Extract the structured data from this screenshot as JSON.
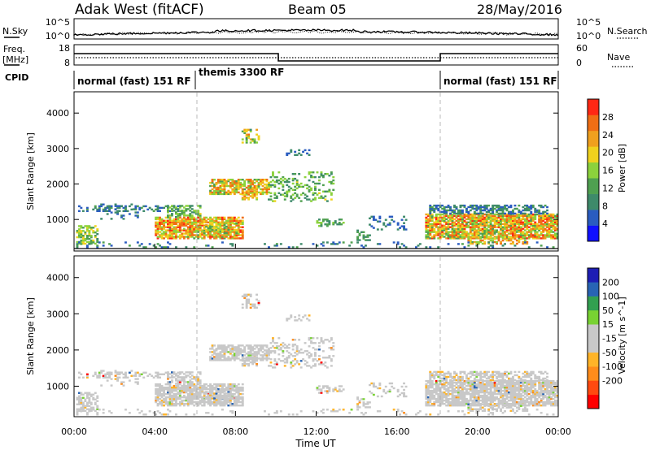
{
  "header": {
    "station": "Adak West (fitACF)",
    "beam": "Beam 05",
    "date": "28/May/2016"
  },
  "noise_panel": {
    "left_label": "N.Sky",
    "right_label": "N.Search",
    "left_ticks": [
      "10^5",
      "10^0"
    ],
    "right_ticks": [
      "10^5",
      "10^0"
    ]
  },
  "freq_panel": {
    "left_label_1": "Freq.",
    "left_label_2": "[MHz]",
    "right_label": "Nave",
    "left_ticks": [
      "18",
      "8"
    ],
    "right_ticks": [
      "60",
      "0"
    ]
  },
  "cpid_panel": {
    "label": "CPID",
    "modes": [
      {
        "name": "normal (fast) 151 RF",
        "start_hour": 0
      },
      {
        "name": "themis 3300 RF",
        "start_hour": 6
      },
      {
        "name": "normal (fast) 151 RF",
        "start_hour": 18
      }
    ]
  },
  "colors": {
    "power": [
      "#1010ff",
      "#2a5cc0",
      "#3e8a6a",
      "#4fa050",
      "#8cd23c",
      "#f0d21e",
      "#f0a01e",
      "#f06e14",
      "#ff2814"
    ],
    "velocity": [
      "#ff0000",
      "#ff4a10",
      "#ff8c1a",
      "#ffb428",
      "#c8c8c8",
      "#c8c8c8",
      "#78d232",
      "#32a050",
      "#2864b4",
      "#1e1eb4"
    ]
  },
  "chart_data": [
    {
      "type": "heatmap",
      "name": "power",
      "xlabel": "",
      "ylabel": "Slant Range [km]",
      "x_range_hours": [
        0,
        24
      ],
      "y_range_km": [
        180,
        4600
      ],
      "yticks": [
        1000,
        2000,
        3000,
        4000
      ],
      "colorbar_label": "Power [dB]",
      "colorbar_ticks": [
        4,
        8,
        12,
        16,
        20,
        24,
        28
      ],
      "colorbar_range": [
        0,
        32
      ]
    },
    {
      "type": "heatmap",
      "name": "velocity",
      "xlabel": "Time UT",
      "ylabel": "Slant Range [km]",
      "x_range_hours": [
        0,
        24
      ],
      "y_range_km": [
        180,
        4600
      ],
      "yticks": [
        1000,
        2000,
        3000,
        4000
      ],
      "xticks": [
        "00:00",
        "04:00",
        "08:00",
        "12:00",
        "16:00",
        "20:00",
        "00:00"
      ],
      "colorbar_label": "Velocity [m s^-1]",
      "colorbar_ticks": [
        "200",
        "100",
        "50",
        "15",
        "-15",
        "-50",
        "-100",
        "-200"
      ]
    }
  ]
}
